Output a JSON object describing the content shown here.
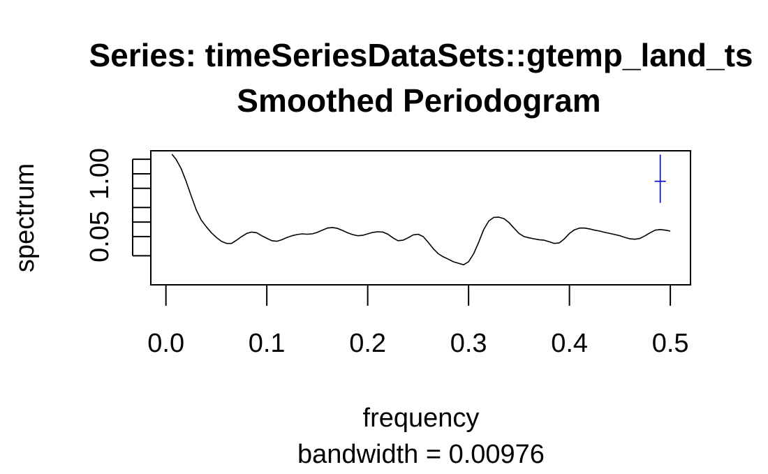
{
  "chart_data": {
    "type": "line",
    "title_lines": [
      "Series: timeSeriesDataSets::gtemp_land_ts",
      "Smoothed Periodogram"
    ],
    "xlabel": "frequency",
    "sublabel": "bandwidth = 0.00976",
    "ylabel": "spectrum",
    "log_y": true,
    "xlim": [
      -0.015,
      0.52
    ],
    "ylim": [
      0.005,
      3.0
    ],
    "x_ticks": [
      0.0,
      0.1,
      0.2,
      0.3,
      0.4,
      0.5
    ],
    "x_tick_labels": [
      "0.0",
      "0.1",
      "0.2",
      "0.3",
      "0.4",
      "0.5"
    ],
    "y_major_ticks": [
      0.05,
      1.0
    ],
    "y_tick_labels": [
      "0.05",
      "1.00"
    ],
    "y_minor_ticks": [
      0.02,
      0.1,
      0.2,
      0.5,
      2.0
    ],
    "series": [
      {
        "color": "#000000",
        "x": [
          0.006,
          0.01,
          0.015,
          0.02,
          0.025,
          0.03,
          0.035,
          0.04,
          0.045,
          0.05,
          0.055,
          0.06,
          0.065,
          0.07,
          0.075,
          0.08,
          0.085,
          0.09,
          0.095,
          0.1,
          0.105,
          0.11,
          0.115,
          0.12,
          0.125,
          0.13,
          0.135,
          0.14,
          0.145,
          0.15,
          0.155,
          0.16,
          0.165,
          0.17,
          0.175,
          0.18,
          0.185,
          0.19,
          0.195,
          0.2,
          0.205,
          0.21,
          0.215,
          0.22,
          0.225,
          0.23,
          0.235,
          0.24,
          0.245,
          0.25,
          0.255,
          0.26,
          0.265,
          0.27,
          0.275,
          0.28,
          0.285,
          0.29,
          0.295,
          0.3,
          0.305,
          0.31,
          0.315,
          0.32,
          0.325,
          0.33,
          0.335,
          0.34,
          0.345,
          0.35,
          0.355,
          0.36,
          0.365,
          0.37,
          0.375,
          0.38,
          0.385,
          0.39,
          0.395,
          0.4,
          0.405,
          0.41,
          0.415,
          0.42,
          0.425,
          0.43,
          0.435,
          0.44,
          0.445,
          0.45,
          0.455,
          0.46,
          0.465,
          0.47,
          0.475,
          0.48,
          0.485,
          0.49,
          0.495,
          0.5
        ],
        "y": [
          2.55,
          2.0,
          1.3,
          0.7,
          0.35,
          0.18,
          0.11,
          0.08,
          0.06,
          0.048,
          0.04,
          0.036,
          0.036,
          0.042,
          0.05,
          0.058,
          0.062,
          0.06,
          0.052,
          0.046,
          0.041,
          0.04,
          0.043,
          0.048,
          0.052,
          0.055,
          0.057,
          0.056,
          0.057,
          0.061,
          0.068,
          0.075,
          0.077,
          0.074,
          0.067,
          0.06,
          0.055,
          0.052,
          0.053,
          0.057,
          0.061,
          0.063,
          0.062,
          0.056,
          0.047,
          0.041,
          0.042,
          0.047,
          0.054,
          0.056,
          0.05,
          0.038,
          0.028,
          0.022,
          0.019,
          0.017,
          0.015,
          0.014,
          0.013,
          0.015,
          0.022,
          0.038,
          0.07,
          0.105,
          0.125,
          0.126,
          0.118,
          0.098,
          0.075,
          0.058,
          0.05,
          0.047,
          0.045,
          0.043,
          0.042,
          0.039,
          0.036,
          0.037,
          0.045,
          0.058,
          0.069,
          0.075,
          0.075,
          0.072,
          0.068,
          0.065,
          0.061,
          0.058,
          0.055,
          0.052,
          0.048,
          0.045,
          0.044,
          0.046,
          0.052,
          0.06,
          0.068,
          0.07,
          0.068,
          0.065
        ]
      }
    ],
    "confidence_bar": {
      "color": "#0000cd",
      "x": 0.49,
      "center": 0.7,
      "lower": 0.25,
      "upper": 2.5
    },
    "grid": false
  }
}
